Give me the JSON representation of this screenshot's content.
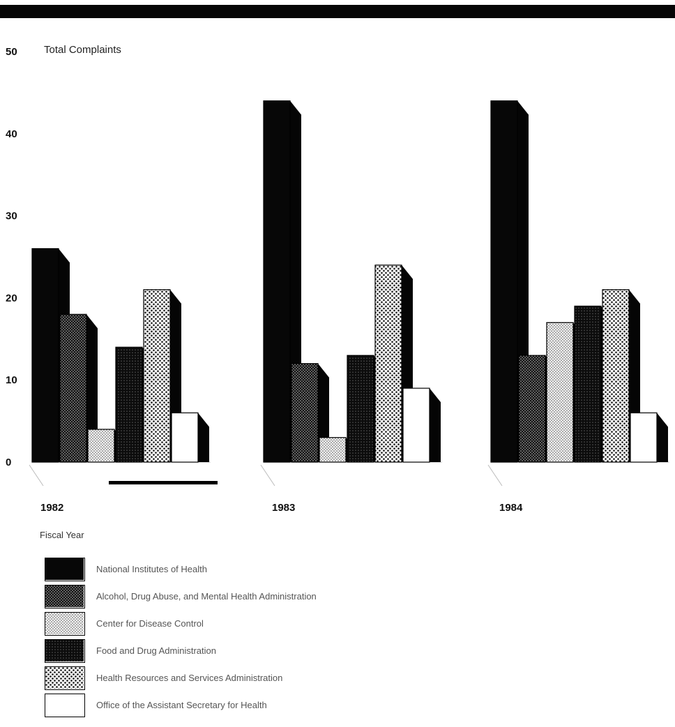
{
  "chart_data": {
    "type": "bar",
    "ylabel": "Total Complaints",
    "ylim": [
      0,
      50
    ],
    "yticks": [
      "0",
      "10",
      "20",
      "30",
      "40",
      "50"
    ],
    "categories": [
      "1982",
      "1983",
      "1984"
    ],
    "xlabel": "Fiscal Year",
    "series": [
      {
        "name": "National Institutes of Health",
        "pattern": "solid",
        "values": [
          26,
          44,
          44
        ]
      },
      {
        "name": "Alcohol, Drug Abuse, and Mental Health Administration",
        "pattern": "dense-dots",
        "values": [
          18,
          12,
          13
        ]
      },
      {
        "name": "Center for Disease Control",
        "pattern": "light-dots",
        "values": [
          4,
          3,
          17
        ]
      },
      {
        "name": "Food and Drug Administration",
        "pattern": "dark-dots",
        "values": [
          14,
          13,
          19
        ]
      },
      {
        "name": "Health Resources and Services Administration",
        "pattern": "checker",
        "values": [
          21,
          24,
          21
        ]
      },
      {
        "name": "Office of the Assistant Secretary for Health",
        "pattern": "white",
        "values": [
          6,
          9,
          6
        ]
      }
    ]
  }
}
